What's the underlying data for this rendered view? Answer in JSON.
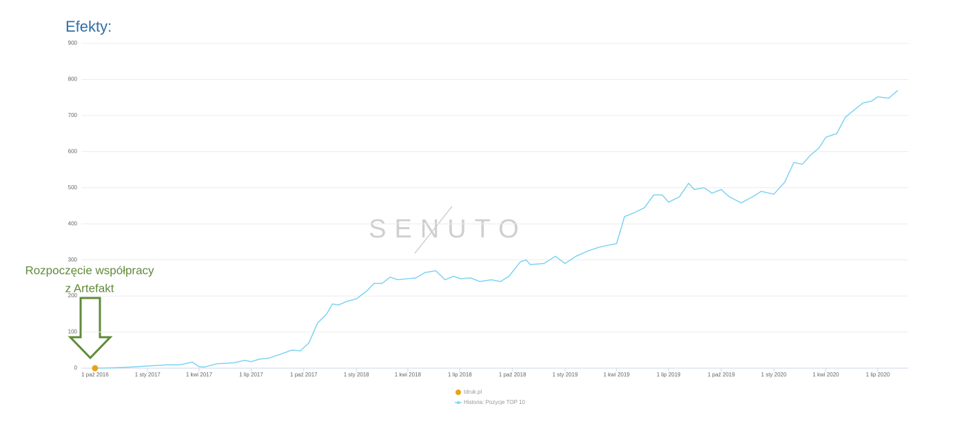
{
  "chart_data": {
    "type": "line",
    "title": "Efekty:",
    "watermark": "SENUTO",
    "annotation": [
      "Rozpoczęcie współpracy",
      "z Artefakt"
    ],
    "xlim": [
      "2016-09-07",
      "2020-08-23"
    ],
    "ylim": [
      0,
      900
    ],
    "yticks": [
      0,
      100,
      200,
      300,
      400,
      500,
      600,
      700,
      800,
      900
    ],
    "xticks": [
      {
        "value": "2016-10-01",
        "label": "1 paź 2016"
      },
      {
        "value": "2017-01-01",
        "label": "1 sty 2017"
      },
      {
        "value": "2017-04-01",
        "label": "1 kwi 2017"
      },
      {
        "value": "2017-07-01",
        "label": "1 lip 2017"
      },
      {
        "value": "2017-10-01",
        "label": "1 paź 2017"
      },
      {
        "value": "2018-01-01",
        "label": "1 sty 2018"
      },
      {
        "value": "2018-04-01",
        "label": "1 kwi 2018"
      },
      {
        "value": "2018-07-01",
        "label": "1 lip 2018"
      },
      {
        "value": "2018-10-01",
        "label": "1 paź 2018"
      },
      {
        "value": "2019-01-01",
        "label": "1 sty 2019"
      },
      {
        "value": "2019-04-01",
        "label": "1 kwi 2019"
      },
      {
        "value": "2019-07-01",
        "label": "1 lip 2019"
      },
      {
        "value": "2019-10-01",
        "label": "1 paź 2019"
      },
      {
        "value": "2020-01-01",
        "label": "1 sty 2020"
      },
      {
        "value": "2020-04-01",
        "label": "1 kwi 2020"
      },
      {
        "value": "2020-07-01",
        "label": "1 lip 2020"
      }
    ],
    "grid": true,
    "flags": {
      "name": "tdruk.pl",
      "color": "#e8a317",
      "x": [
        "2016-10-01"
      ]
    },
    "x": [
      "2016-10-01",
      "2016-11-01",
      "2016-12-01",
      "2017-01-01",
      "2017-02-01",
      "2017-03-01",
      "2017-03-20",
      "2017-04-01",
      "2017-04-10",
      "2017-05-01",
      "2017-06-01",
      "2017-06-20",
      "2017-07-01",
      "2017-07-15",
      "2017-08-01",
      "2017-08-20",
      "2017-09-10",
      "2017-09-25",
      "2017-10-10",
      "2017-10-25",
      "2017-11-10",
      "2017-11-20",
      "2017-12-01",
      "2017-12-15",
      "2018-01-01",
      "2018-01-20",
      "2018-02-01",
      "2018-02-15",
      "2018-03-01",
      "2018-03-15",
      "2018-04-01",
      "2018-04-15",
      "2018-05-01",
      "2018-05-20",
      "2018-06-05",
      "2018-06-20",
      "2018-07-01",
      "2018-07-20",
      "2018-08-05",
      "2018-08-25",
      "2018-09-10",
      "2018-09-25",
      "2018-10-15",
      "2018-10-25",
      "2018-11-01",
      "2018-11-25",
      "2018-12-15",
      "2019-01-01",
      "2019-01-20",
      "2019-02-10",
      "2019-03-01",
      "2019-03-15",
      "2019-04-01",
      "2019-04-15",
      "2019-05-01",
      "2019-05-20",
      "2019-06-05",
      "2019-06-20",
      "2019-07-01",
      "2019-07-20",
      "2019-08-05",
      "2019-08-15",
      "2019-09-01",
      "2019-09-15",
      "2019-10-01",
      "2019-10-15",
      "2019-11-05",
      "2019-11-25",
      "2019-12-10",
      "2020-01-01",
      "2020-01-20",
      "2020-02-05",
      "2020-02-20",
      "2020-03-05",
      "2020-03-20",
      "2020-04-01",
      "2020-04-20",
      "2020-05-05",
      "2020-05-20",
      "2020-06-05",
      "2020-06-20",
      "2020-07-01",
      "2020-07-20",
      "2020-08-05"
    ],
    "series": [
      {
        "name": "Historia: Pozycje TOP 10",
        "color": "#7cd3f2",
        "values": [
          0,
          1,
          3,
          6,
          9,
          10,
          17,
          4,
          3,
          12,
          15,
          22,
          18,
          25,
          28,
          38,
          50,
          48,
          70,
          125,
          150,
          178,
          175,
          185,
          192,
          215,
          235,
          235,
          252,
          245,
          248,
          250,
          265,
          270,
          245,
          255,
          248,
          250,
          240,
          245,
          240,
          255,
          295,
          300,
          287,
          290,
          310,
          290,
          310,
          325,
          335,
          340,
          345,
          420,
          430,
          445,
          480,
          480,
          460,
          475,
          512,
          495,
          500,
          485,
          495,
          475,
          458,
          475,
          490,
          482,
          515,
          570,
          565,
          590,
          610,
          640,
          650,
          695,
          715,
          735,
          740,
          752,
          748,
          770
        ]
      }
    ]
  }
}
